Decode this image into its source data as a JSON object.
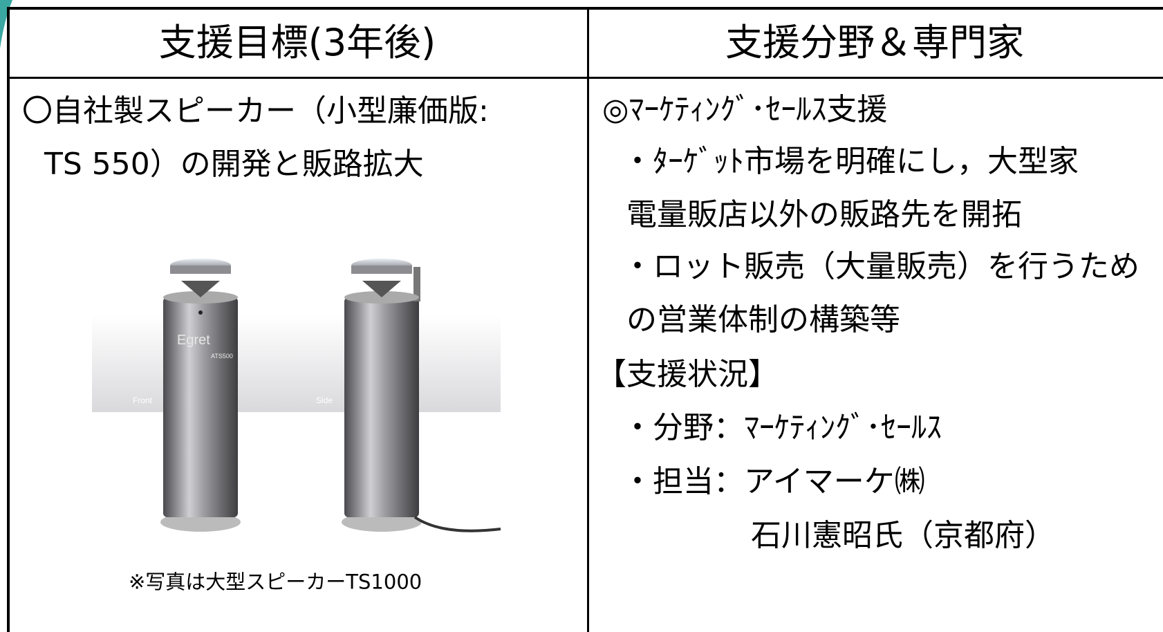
{
  "table": {
    "header": [
      "支援目標(3年後)",
      "支援分野＆専門家"
    ],
    "left": {
      "lines": [
        "〇自社製スピーカー（小型廉価版:",
        "TS 550）の開発と販路拡大"
      ],
      "photo_labels": [
        "Egret",
        "ATS500",
        "Front",
        "Side"
      ],
      "caption": "※写真は大型スピーカーTS1000"
    },
    "right": {
      "lines": [
        "◎ﾏｰｹﾃｨﾝｸﾞ･ｾｰﾙｽ支援",
        "・ﾀｰｹﾞｯﾄ市場を明確にし，大型家",
        "電量販店以外の販路先を開拓",
        "・ロット販売（大量販売）を行うため",
        "の営業体制の構築等",
        "【支援状況】",
        "・分野：ﾏｰｹﾃｨﾝｸﾞ･ｾｰﾙｽ",
        "・担当：アイマーケ㈱",
        "石川憲昭氏（京都府）"
      ]
    }
  }
}
